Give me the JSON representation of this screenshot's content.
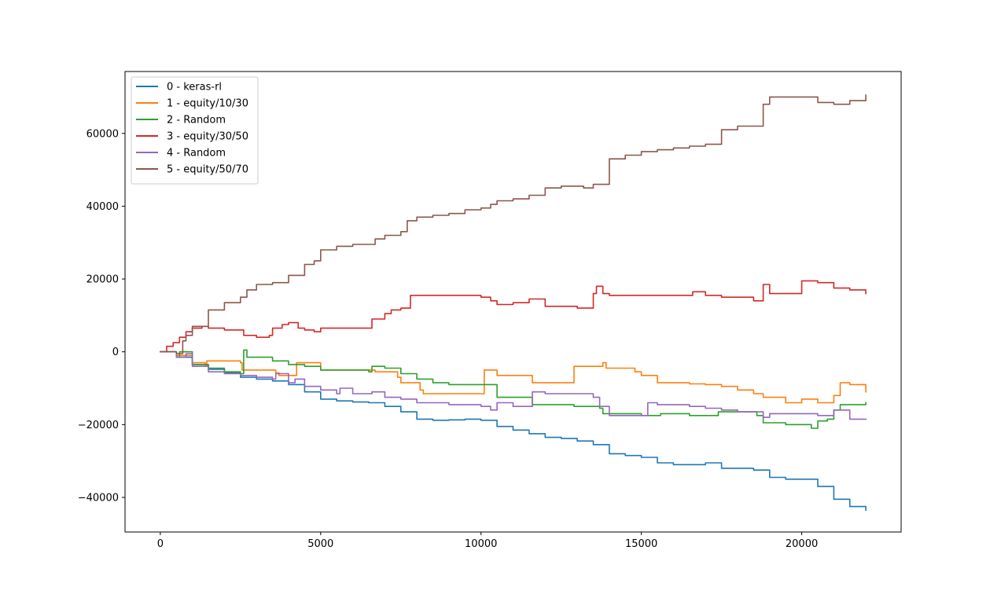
{
  "chart_data": {
    "type": "line",
    "title": "",
    "xlabel": "",
    "ylabel": "",
    "xlim": [
      -1100,
      23100
    ],
    "ylim": [
      -49500,
      77000
    ],
    "xticks": [
      0,
      5000,
      10000,
      15000,
      20000
    ],
    "xtick_labels": [
      "0",
      "5000",
      "10000",
      "15000",
      "20000"
    ],
    "yticks": [
      -40000,
      -20000,
      0,
      20000,
      40000,
      60000
    ],
    "ytick_labels": [
      "−40000",
      "−20000",
      "0",
      "20000",
      "40000",
      "60000"
    ],
    "grid": false,
    "legend_position": "upper-left",
    "series": [
      {
        "name": "0 - keras-rl",
        "color": "#1f77b4",
        "x": [
          0,
          500,
          1000,
          1500,
          2000,
          2500,
          3000,
          3500,
          4000,
          4500,
          5000,
          5500,
          6000,
          6500,
          7000,
          7500,
          8000,
          8500,
          9000,
          9500,
          10000,
          10500,
          11000,
          11500,
          12000,
          12500,
          13000,
          13500,
          14000,
          14500,
          15000,
          15500,
          16000,
          16500,
          17000,
          17500,
          18000,
          18500,
          19000,
          19500,
          20000,
          20500,
          21000,
          21500,
          22000
        ],
        "y": [
          0,
          -1500,
          -3500,
          -4800,
          -5800,
          -7000,
          -7500,
          -8000,
          -9000,
          -11000,
          -13000,
          -13500,
          -13800,
          -14000,
          -15000,
          -16500,
          -18500,
          -18800,
          -18700,
          -18500,
          -18800,
          -20500,
          -21500,
          -22500,
          -23500,
          -23800,
          -24500,
          -25500,
          -28000,
          -28500,
          -29000,
          -30500,
          -31000,
          -31000,
          -30500,
          -32000,
          -32000,
          -32500,
          -34500,
          -35000,
          -35000,
          -37000,
          -40500,
          -42500,
          -43500
        ]
      },
      {
        "name": "1 - equity/10/30",
        "color": "#ff7f0e",
        "x": [
          0,
          500,
          1000,
          1400,
          1450,
          2500,
          2550,
          3600,
          3700,
          4200,
          4250,
          4900,
          5000,
          6600,
          6700,
          7400,
          7500,
          8100,
          8200,
          10000,
          10100,
          10500,
          11500,
          11600,
          12800,
          12900,
          13800,
          13900,
          14800,
          15000,
          15500,
          16000,
          16500,
          17000,
          17500,
          18000,
          18500,
          18800,
          19500,
          20000,
          20500,
          21000,
          21200,
          21500,
          22000
        ],
        "y": [
          0,
          -1000,
          -3000,
          -4000,
          -2500,
          -3000,
          -5000,
          -5800,
          -6500,
          -6500,
          -3000,
          -3000,
          -5000,
          -5000,
          -5500,
          -7000,
          -8500,
          -10500,
          -11500,
          -11500,
          -5000,
          -6500,
          -6500,
          -8500,
          -8500,
          -4000,
          -3000,
          -4500,
          -5500,
          -6500,
          -8500,
          -8500,
          -8800,
          -9000,
          -9500,
          -10500,
          -11500,
          -12500,
          -14000,
          -13000,
          -14000,
          -12000,
          -8500,
          -9000,
          -11000
        ]
      },
      {
        "name": "2 - Random",
        "color": "#2ca02c",
        "x": [
          0,
          500,
          600,
          1000,
          1500,
          2000,
          2500,
          2600,
          2700,
          3500,
          4000,
          4500,
          5000,
          6500,
          6600,
          7000,
          7500,
          8000,
          8500,
          9000,
          10000,
          10500,
          11500,
          11600,
          12800,
          12900,
          13700,
          13800,
          14500,
          15000,
          15500,
          15600,
          16500,
          17300,
          17400,
          18500,
          18600,
          18800,
          19500,
          20000,
          20300,
          20500,
          20800,
          21000,
          21200,
          22000
        ],
        "y": [
          0,
          -1500,
          0,
          -3500,
          -4500,
          -5500,
          -6000,
          500,
          -1500,
          -2500,
          -3500,
          -4000,
          -5000,
          -5500,
          -4000,
          -4500,
          -6000,
          -7500,
          -8500,
          -9000,
          -9000,
          -12500,
          -12500,
          -14500,
          -14500,
          -15000,
          -15500,
          -17000,
          -17000,
          -17500,
          -17500,
          -17000,
          -17500,
          -17500,
          -16500,
          -16500,
          -17500,
          -19500,
          -20000,
          -20000,
          -21000,
          -19000,
          -18500,
          -16000,
          -14500,
          -14000
        ]
      },
      {
        "name": "3 - equity/30/50",
        "color": "#d62728",
        "x": [
          0,
          200,
          400,
          600,
          800,
          1000,
          1300,
          1500,
          2000,
          2500,
          2600,
          3000,
          3400,
          3500,
          3800,
          4000,
          4300,
          4500,
          4800,
          5000,
          5500,
          6000,
          6500,
          6600,
          7000,
          7200,
          7500,
          7700,
          7800,
          8000,
          8500,
          9000,
          10000,
          10300,
          10500,
          11000,
          11500,
          12000,
          12500,
          13000,
          13500,
          13600,
          13800,
          14000,
          15000,
          15500,
          16000,
          16500,
          16600,
          17000,
          17500,
          18500,
          18800,
          19000,
          20000,
          20500,
          21000,
          21500,
          22000
        ],
        "y": [
          0,
          1500,
          2500,
          4000,
          5500,
          6500,
          7000,
          6500,
          6000,
          6000,
          4500,
          4000,
          4500,
          6500,
          7500,
          8000,
          6500,
          6000,
          5500,
          6500,
          6500,
          6500,
          6500,
          9000,
          10500,
          11500,
          12000,
          12000,
          15500,
          15500,
          15500,
          15500,
          15000,
          14000,
          13000,
          13500,
          14500,
          12500,
          12500,
          12000,
          16000,
          18000,
          16000,
          15500,
          15500,
          15500,
          15500,
          15500,
          16500,
          15500,
          15000,
          14000,
          18500,
          16000,
          19500,
          19000,
          17500,
          17000,
          16000
        ]
      },
      {
        "name": "4 - Random",
        "color": "#9467bd",
        "x": [
          0,
          500,
          800,
          1000,
          1500,
          2000,
          2500,
          3000,
          3500,
          3600,
          4000,
          4200,
          4500,
          5000,
          5500,
          5600,
          6000,
          6500,
          6600,
          7000,
          7500,
          8000,
          9000,
          10000,
          10300,
          10500,
          11000,
          11500,
          11600,
          12000,
          12500,
          13000,
          13500,
          13700,
          14000,
          14500,
          15000,
          15200,
          15500,
          16000,
          16500,
          17000,
          17500,
          18000,
          18500,
          18800,
          19000,
          19500,
          20000,
          20500,
          21000,
          21500,
          22000
        ],
        "y": [
          0,
          -1500,
          -500,
          -4000,
          -5500,
          -6000,
          -6500,
          -7000,
          -7500,
          -6000,
          -8500,
          -7500,
          -9500,
          -10500,
          -11500,
          -10000,
          -11500,
          -11500,
          -11000,
          -12500,
          -13000,
          -14000,
          -14500,
          -15000,
          -16000,
          -14000,
          -15000,
          -15000,
          -11000,
          -11500,
          -11500,
          -11500,
          -12500,
          -15000,
          -17500,
          -17500,
          -17500,
          -14000,
          -14500,
          -14500,
          -15000,
          -15500,
          -16000,
          -16500,
          -16500,
          -18000,
          -17000,
          -17000,
          -17000,
          -17500,
          -16000,
          -18500,
          -18500
        ]
      },
      {
        "name": "5 - equity/50/70",
        "color": "#8c564b",
        "x": [
          0,
          500,
          700,
          800,
          1000,
          1500,
          2000,
          2500,
          2700,
          3000,
          3500,
          4000,
          4500,
          4800,
          5000,
          5500,
          6000,
          6500,
          6700,
          7000,
          7500,
          7700,
          8000,
          8500,
          9000,
          9500,
          10000,
          10300,
          10500,
          11000,
          11500,
          12000,
          12500,
          13000,
          13200,
          13500,
          14000,
          14500,
          15000,
          15500,
          16000,
          16500,
          17000,
          17500,
          18000,
          18500,
          18800,
          19000,
          19500,
          20000,
          20500,
          21000,
          21500,
          22000
        ],
        "y": [
          0,
          -500,
          3000,
          4500,
          7000,
          11500,
          13500,
          15000,
          17000,
          18500,
          19000,
          21000,
          24000,
          25000,
          28000,
          29000,
          29500,
          29500,
          31000,
          32000,
          33000,
          36000,
          37000,
          37500,
          38000,
          39000,
          39500,
          40500,
          41500,
          42000,
          43000,
          45000,
          45500,
          45500,
          45000,
          46000,
          53000,
          54000,
          55000,
          55500,
          56000,
          56500,
          57000,
          61000,
          62000,
          62000,
          68000,
          70000,
          70000,
          70000,
          68500,
          68000,
          69000,
          70500
        ]
      }
    ]
  }
}
